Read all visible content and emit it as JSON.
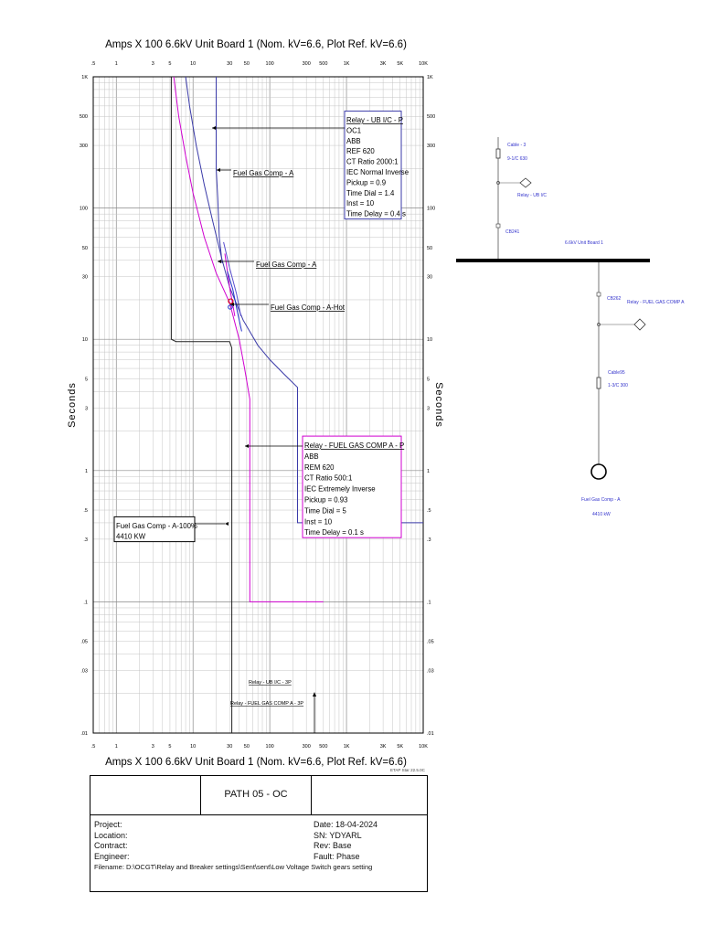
{
  "chart_data": {
    "type": "line",
    "title": "Amps  X  100   6.6kV Unit Board 1 (Nom. kV=6.6, Plot Ref. kV=6.6)",
    "bottom_title": "Amps  X  100   6.6kV Unit Board 1 (Nom. kV=6.6, Plot Ref. kV=6.6)",
    "ylabel": "Seconds",
    "xscale": "log",
    "yscale": "log",
    "xlim": [
      0.5,
      10000
    ],
    "ylim": [
      0.01,
      1000
    ],
    "grid": true,
    "x_ticks": [
      {
        "v": 0.5,
        "label": ".5"
      },
      {
        "v": 1,
        "label": "1"
      },
      {
        "v": 3,
        "label": "3"
      },
      {
        "v": 5,
        "label": "5"
      },
      {
        "v": 10,
        "label": "10"
      },
      {
        "v": 30,
        "label": "30"
      },
      {
        "v": 50,
        "label": "50"
      },
      {
        "v": 100,
        "label": "100"
      },
      {
        "v": 300,
        "label": "300"
      },
      {
        "v": 500,
        "label": "500"
      },
      {
        "v": 1000,
        "label": "1K"
      },
      {
        "v": 3000,
        "label": "3K"
      },
      {
        "v": 5000,
        "label": "5K"
      },
      {
        "v": 10000,
        "label": "10K"
      }
    ],
    "y_ticks": [
      {
        "v": 1000,
        "label": "1K"
      },
      {
        "v": 500,
        "label": "500"
      },
      {
        "v": 300,
        "label": "300"
      },
      {
        "v": 100,
        "label": "100"
      },
      {
        "v": 50,
        "label": "50"
      },
      {
        "v": 30,
        "label": "30"
      },
      {
        "v": 10,
        "label": "10"
      },
      {
        "v": 5,
        "label": "5"
      },
      {
        "v": 3,
        "label": "3"
      },
      {
        "v": 1,
        "label": "1"
      },
      {
        "v": 0.5,
        "label": ".5"
      },
      {
        "v": 0.3,
        "label": ".3"
      },
      {
        "v": 0.1,
        "label": ".1"
      },
      {
        "v": 0.05,
        "label": ".05"
      },
      {
        "v": 0.03,
        "label": ".03"
      },
      {
        "v": 0.01,
        "label": ".01"
      }
    ],
    "series": [
      {
        "color": "#3a3aa8",
        "points": [
          [
            8,
            1000
          ],
          [
            9,
            600
          ],
          [
            11,
            300
          ],
          [
            14,
            150
          ],
          [
            18,
            80
          ],
          [
            24,
            40
          ],
          [
            30,
            25
          ],
          [
            45,
            14
          ],
          [
            70,
            9
          ],
          [
            100,
            7
          ],
          [
            150,
            5.5
          ],
          [
            230,
            4.3
          ],
          [
            230,
            0.4
          ],
          [
            10000,
            0.4
          ]
        ]
      },
      {
        "color": "#d000d0",
        "points": [
          [
            5.6,
            1000
          ],
          [
            6.5,
            500
          ],
          [
            8,
            250
          ],
          [
            10,
            130
          ],
          [
            14,
            60
          ],
          [
            20,
            32
          ],
          [
            30,
            19
          ],
          [
            40,
            10
          ],
          [
            47,
            6
          ],
          [
            55,
            3.5
          ],
          [
            55,
            0.1
          ],
          [
            500,
            0.1
          ]
        ]
      },
      {
        "color": "#222222",
        "points": [
          [
            5.2,
            1000
          ],
          [
            5.2,
            10
          ],
          [
            6,
            9.6
          ],
          [
            30,
            9.6
          ],
          [
            32,
            8.6
          ],
          [
            32,
            0.01
          ]
        ]
      },
      {
        "color": "#3a3aa8",
        "points": [
          [
            20,
            1000
          ],
          [
            20,
            200
          ],
          [
            21,
            120
          ],
          [
            22,
            60
          ],
          [
            24,
            38
          ]
        ]
      },
      {
        "color": "#d000d0",
        "points": [
          [
            26,
            45
          ],
          [
            30,
            25
          ],
          [
            35,
            15
          ]
        ]
      },
      {
        "color": "#5a4fcf",
        "points": [
          [
            25,
            55
          ],
          [
            30,
            35
          ],
          [
            37,
            22
          ],
          [
            42,
            15
          ]
        ]
      },
      {
        "color": "#2233cc",
        "points": [
          [
            28,
            33
          ],
          [
            33,
            24
          ],
          [
            38,
            16
          ],
          [
            43,
            11.5
          ]
        ]
      }
    ],
    "annotations": [
      {
        "lines": [
          "Relay - UB I/C - P",
          "OC1",
          "ABB",
          "REF 620",
          "CT Ratio 2000:1",
          "IEC Normal Inverse",
          "Pickup = 0.9",
          "Time Dial = 1.4",
          "Inst = 10",
          "Time Delay = 0.4 s"
        ],
        "color": "#3a3aa8"
      },
      {
        "lines": [
          "Fuel Gas Comp - A"
        ]
      },
      {
        "lines": [
          "Fuel Gas Comp - A"
        ]
      },
      {
        "lines": [
          "Fuel Gas Comp - A-Hot"
        ]
      },
      {
        "lines": [
          "Relay - FUEL GAS COMP A - P",
          "ABB",
          "REM 620",
          "CT Ratio 500:1",
          "IEC Extremely Inverse",
          "Pickup = 0.93",
          "Time Dial = 5",
          "Inst = 10",
          "Time Delay = 0.1 s"
        ],
        "color": "#d000d0"
      },
      {
        "lines": [
          "Fuel Gas Comp - A-100%",
          "4410 KW"
        ],
        "color": "#000000"
      }
    ],
    "legend_labels": [
      "Relay - UB I/C - 3P",
      "Relay - FUEL GAS COMP A - 3P"
    ],
    "version_text": "ETAP Star 22.5.0C"
  },
  "single_line": {
    "cable_top": {
      "label": "Cable - 3",
      "spec": "9-1/C 630"
    },
    "relay_top": "Relay - UB I/C",
    "breaker_top": "CB241",
    "bus": "6.6kV Unit Board 1",
    "breaker_bottom": "CB262",
    "relay_bottom": "Relay - FUEL GAS COMP A",
    "cable_bottom": {
      "label": "Cable95",
      "spec": "1-3/C 300"
    },
    "motor": {
      "label": "Fuel Gas Comp - A",
      "rating": "4410 kW"
    }
  },
  "title_block": {
    "path": "PATH 05 - OC",
    "project": "Project:",
    "location": "Location:",
    "contract": "Contract:",
    "engineer": "Engineer:",
    "filename": "Filename: D:\\OCGT\\Relay and Breaker settings\\Sent\\sent\\Low Voltage  Switch gears setting",
    "date": "Date:  18-04-2024",
    "sn": "SN:    YDYARL",
    "rev": "Rev:   Base",
    "fault": "Fault: Phase"
  }
}
